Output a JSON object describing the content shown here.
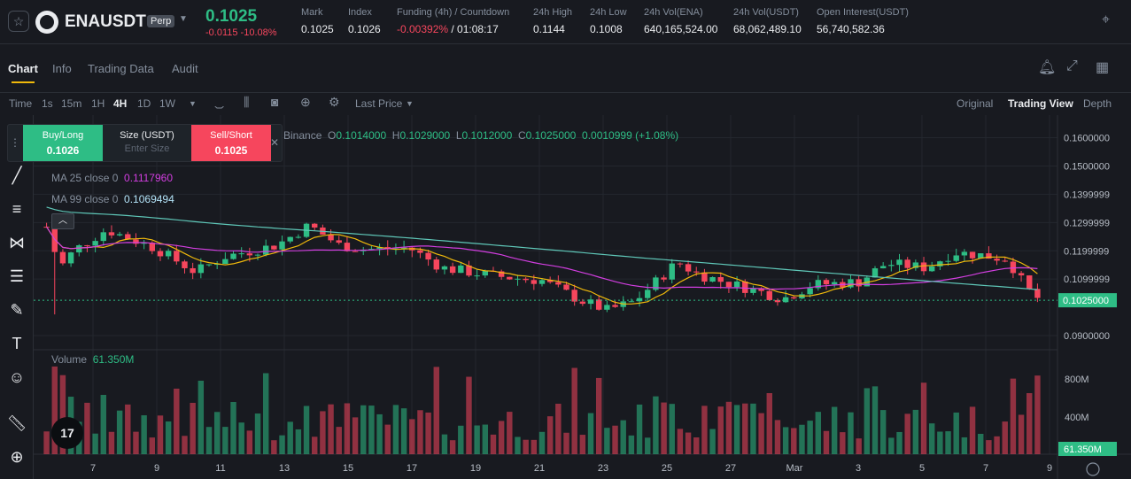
{
  "ticker": {
    "symbol": "ENAUSDT",
    "badge": "Perp",
    "last_price": "0.1025",
    "change": "-0.0115 -10.08%",
    "stats": [
      {
        "label": "Mark",
        "value": "0.1025"
      },
      {
        "label": "Index",
        "value": "0.1026"
      },
      {
        "label": "Funding (4h) / Countdown",
        "value_neg": "-0.00392%",
        "value": " / 01:08:17"
      },
      {
        "label": "24h High",
        "value": "0.1144"
      },
      {
        "label": "24h Low",
        "value": "0.1008"
      },
      {
        "label": "24h Vol(ENA)",
        "value": "640,165,524.00"
      },
      {
        "label": "24h Vol(USDT)",
        "value": "68,062,489.10"
      },
      {
        "label": "Open Interest(USDT)",
        "value": "56,740,582.36"
      }
    ]
  },
  "tabs": [
    {
      "label": "Chart"
    },
    {
      "label": "Info"
    },
    {
      "label": "Trading Data"
    },
    {
      "label": "Audit"
    }
  ],
  "toolbar": {
    "intervals": [
      "Time",
      "1s",
      "15m",
      "1H",
      "4H",
      "1D",
      "1W"
    ],
    "price_type": "Last Price",
    "views": [
      "Original",
      "Trading View",
      "Depth"
    ]
  },
  "order": {
    "buy_label": "Buy/Long",
    "buy_price": "0.1026",
    "size_label": "Size (USDT)",
    "size_placeholder": "Enter Size",
    "sell_label": "Sell/Short",
    "sell_price": "0.1025"
  },
  "legend": {
    "source": "Binance",
    "ohlc": {
      "o": "0.1014000",
      "h": "0.1029000",
      "l": "0.1012000",
      "c": "0.1025000",
      "chg": "0.0010999 (+1.08%)"
    },
    "ma25_label": "MA 25 close 0",
    "ma25_value": "0.1117960",
    "ma99_label": "MA 99 close 0",
    "ma99_value": "0.1069494",
    "volume_label": "Volume",
    "volume_value": "61.350M"
  },
  "colors": {
    "up": "#2ebd85",
    "down": "#f6465d",
    "ma7": "#f0b90b",
    "ma25": "#d23ee0",
    "ma99": "#5fc7b8",
    "accent": "#f0b90b"
  },
  "chart_data": {
    "type": "candlestick",
    "interval": "4H",
    "price_axis_ticks": [
      "0.1600000",
      "0.1500000",
      "0.1399999",
      "0.1299999",
      "0.1199999",
      "0.1099999",
      "0.0900000"
    ],
    "current_price_label": "0.1025000",
    "volume_axis_ticks": [
      "800M",
      "400M"
    ],
    "current_volume_label": "61.350M",
    "x_ticks": [
      "7",
      "9",
      "11",
      "13",
      "15",
      "17",
      "19",
      "21",
      "23",
      "25",
      "27",
      "Mar",
      "3",
      "5",
      "7",
      "9"
    ],
    "ylim": [
      0.085,
      0.168
    ]
  }
}
